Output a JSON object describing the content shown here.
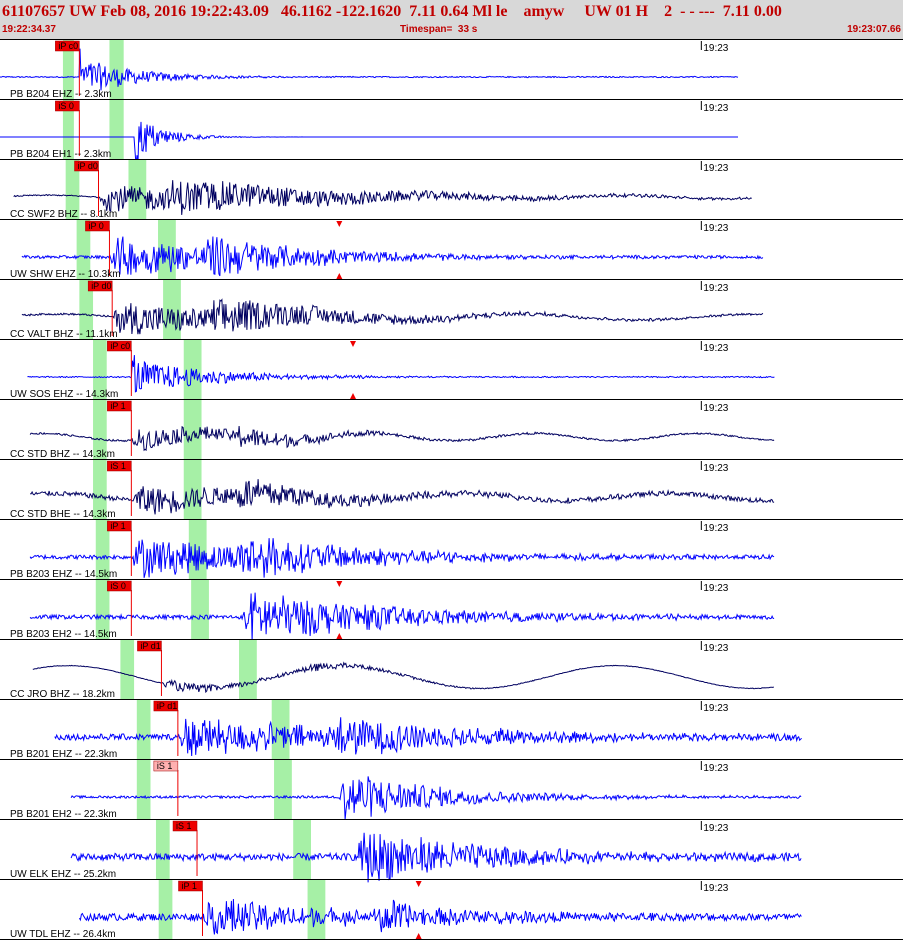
{
  "header": {
    "event_line": "61107657 UW Feb 08, 2016 19:22:43.09   46.1162 -122.1620  7.11 0.64 Ml le    amyw     UW 01 H    2  - - ---  7.11 0.00",
    "start_time": "19:22:34.37",
    "timespan": "Timespan=  33 s",
    "end_time": "19:23:07.66"
  },
  "colors": {
    "red": "#c00000",
    "pick_red": "#ee0000",
    "pick_pink": "#ffb0b0",
    "window_green": "#a6f0a6",
    "blue": "#0000ff",
    "navy": "#000060",
    "header_bg": "#d8d8d8"
  },
  "chart_data": {
    "type": "line",
    "title": "",
    "x_range": [
      "19:22:34.37",
      "19:23:07.66"
    ],
    "timespan_s": 33,
    "minute_marker": "19:23",
    "traces": [
      {
        "label": "PB B204 EHZ -- 2.3km",
        "color": "blue",
        "pick": "iP c0",
        "p_s": 2.9,
        "s_s": 4.9,
        "green_s": [
          2.3,
          2.9
        ],
        "dur_s": 0.4,
        "start_s": 0,
        "end_s": 27.0,
        "onset_s": 2.9,
        "shape": "spike",
        "amp": 0.55,
        "noise": 0.02,
        "decay_s": 2.0
      },
      {
        "label": "PB B204 EH1 -- 2.3km",
        "color": "blue",
        "pick": "iS 0",
        "p_s": 2.9,
        "s_s": 4.9,
        "green_s": [
          2.3,
          2.9
        ],
        "dur_s": 0.4,
        "start_s": 0,
        "end_s": 27.0,
        "onset_s": 4.9,
        "shape": "spike",
        "amp": 0.7,
        "noise": 0.0,
        "decay_s": 1.0
      },
      {
        "label": "CC SWF2 BHZ -- 8.1km",
        "color": "navy",
        "pick": "iP d0",
        "p_s": 3.6,
        "s_s": 6.3,
        "green_s": [
          2.4,
          3.6
        ],
        "dur_s": 0.5,
        "start_s": 0.5,
        "end_s": 27.5,
        "onset_s": 3.6,
        "shape": "long",
        "amp": 0.4,
        "noise": 0.02,
        "decay_s": 8.0,
        "long_amp": 0.06,
        "long_period": 7.0
      },
      {
        "label": "UW SHW EHZ -- 10.3km",
        "color": "blue",
        "pick": "iP 0",
        "p_s": 4.0,
        "s_s": 7.5,
        "green_s": [
          2.8,
          4.0
        ],
        "dur_s": 0.5,
        "start_s": 0.8,
        "end_s": 27.9,
        "onset_s": 4.0,
        "shape": "burst",
        "amp": 0.6,
        "noise": 0.05,
        "decay_s": 5.0,
        "s_marker": 12.4
      },
      {
        "label": "CC VALT BHZ -- 11.1km",
        "color": "navy",
        "pick": "iP d0",
        "p_s": 4.1,
        "s_s": 7.7,
        "green_s": [
          2.9,
          4.1
        ],
        "dur_s": 0.5,
        "start_s": 0.8,
        "end_s": 27.9,
        "onset_s": 4.1,
        "shape": "long",
        "amp": 0.5,
        "noise": 0.03,
        "decay_s": 6.0,
        "long_amp": 0.1,
        "long_period": 8.5
      },
      {
        "label": "UW SOS EHZ -- 14.3km",
        "color": "blue",
        "pick": "iP c0",
        "p_s": 4.8,
        "s_s": 8.7,
        "green_s": [
          3.4,
          4.8
        ],
        "dur_s": 0.5,
        "start_s": 1.0,
        "end_s": 28.3,
        "onset_s": 4.8,
        "shape": "spike",
        "amp": 0.5,
        "noise": 0.02,
        "decay_s": 3.0,
        "s_marker": 12.9
      },
      {
        "label": "CC STD BHZ -- 14.3km",
        "color": "navy",
        "pick": "iP 1",
        "p_s": 4.8,
        "s_s": 8.7,
        "green_s": [
          3.4,
          4.8
        ],
        "dur_s": 0.5,
        "start_s": 1.1,
        "end_s": 28.3,
        "onset_s": 4.8,
        "shape": "long",
        "amp": 0.35,
        "noise": 0.03,
        "decay_s": 4.0,
        "long_amp": 0.12,
        "long_period": 6.0
      },
      {
        "label": "CC STD BHE -- 14.3km",
        "color": "navy",
        "pick": "iS 1",
        "p_s": 4.8,
        "s_s": 8.7,
        "green_s": [
          3.4,
          4.8
        ],
        "dur_s": 0.5,
        "start_s": 1.1,
        "end_s": 28.3,
        "onset_s": 4.8,
        "shape": "long",
        "amp": 0.45,
        "noise": 0.08,
        "decay_s": 5.0,
        "long_amp": 0.12,
        "long_period": 7.5
      },
      {
        "label": "PB B203 EHZ -- 14.5km",
        "color": "blue",
        "pick": "iP 1",
        "p_s": 4.8,
        "s_s": 8.8,
        "green_s": [
          3.5,
          4.8
        ],
        "dur_s": 0.5,
        "start_s": 1.1,
        "end_s": 28.3,
        "onset_s": 4.8,
        "shape": "burst",
        "amp": 0.6,
        "noise": 0.07,
        "decay_s": 6.0
      },
      {
        "label": "PB B203 EH2 -- 14.5km",
        "color": "blue",
        "pick": "iS 0",
        "p_s": 4.8,
        "s_s": 8.9,
        "green_s": [
          3.5,
          4.8
        ],
        "dur_s": 0.5,
        "start_s": 1.1,
        "end_s": 28.3,
        "onset_s": 8.9,
        "shape": "burst",
        "amp": 0.5,
        "noise": 0.07,
        "decay_s": 6.0,
        "s_marker": 12.4
      },
      {
        "label": "CC JRO BHZ -- 18.2km",
        "color": "navy",
        "pick": "iP d1",
        "p_s": 5.9,
        "s_s": 11.0,
        "green_s": [
          4.4,
          5.9
        ],
        "dur_s": 0.5,
        "start_s": 1.2,
        "end_s": 28.3,
        "onset_s": 5.9,
        "shape": "long",
        "amp": 0.15,
        "noise": 0.01,
        "decay_s": 4.0,
        "long_amp": 0.38,
        "long_period": 10.0
      },
      {
        "label": "PB B201 EHZ -- 22.3km",
        "color": "blue",
        "pick": "iP d1",
        "p_s": 6.5,
        "s_s": 12.3,
        "green_s": [
          5.0,
          6.5
        ],
        "dur_s": 0.5,
        "start_s": 2.0,
        "end_s": 29.3,
        "onset_s": 6.5,
        "shape": "burst",
        "amp": 0.55,
        "noise": 0.1,
        "decay_s": 7.0
      },
      {
        "label": "PB B201 EH2 -- 22.3km",
        "color": "blue",
        "pick": "iS 1",
        "p_s": 6.5,
        "s_s": 12.4,
        "green_s": [
          5.0,
          6.5
        ],
        "dur_s": 0.5,
        "start_s": 2.6,
        "end_s": 29.3,
        "onset_s": 12.4,
        "shape": "burst",
        "amp": 0.5,
        "noise": 0.04,
        "decay_s": 4.0,
        "pink_pick": true
      },
      {
        "label": "UW ELK EHZ -- 25.2km",
        "color": "blue",
        "pick": "iS 1",
        "p_s": 7.2,
        "s_s": 13.1,
        "green_s": [
          5.7,
          7.2
        ],
        "dur_s": 0.5,
        "start_s": 2.6,
        "end_s": 29.3,
        "onset_s": 13.1,
        "shape": "burst",
        "amp": 0.55,
        "noise": 0.12,
        "decay_s": 5.0
      },
      {
        "label": "UW TDL EHZ -- 26.4km",
        "color": "blue",
        "pick": "iP 1",
        "p_s": 7.4,
        "s_s": 13.8,
        "green_s": [
          5.8,
          7.4
        ],
        "dur_s": 0.5,
        "start_s": 2.9,
        "end_s": 29.3,
        "onset_s": 7.4,
        "shape": "burst",
        "amp": 0.55,
        "noise": 0.12,
        "decay_s": 5.0,
        "s_marker": 15.3
      }
    ]
  }
}
